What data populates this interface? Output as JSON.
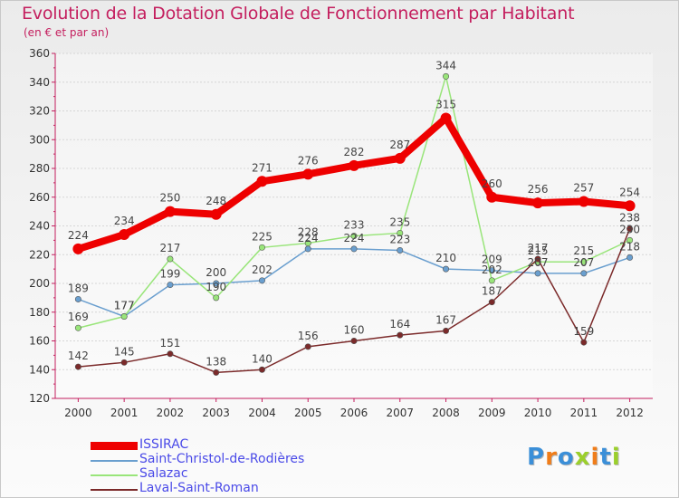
{
  "chart_data": {
    "type": "line",
    "title": "Evolution de la Dotation Globale de Fonctionnement par Habitant",
    "subtitle": "(en € et par an)",
    "xlabel": "",
    "ylabel": "",
    "ylim": [
      120,
      360
    ],
    "yticks": [
      120,
      140,
      160,
      180,
      200,
      220,
      240,
      260,
      280,
      300,
      320,
      340,
      360
    ],
    "grid": "horizontal",
    "categories": [
      "2000",
      "2001",
      "2002",
      "2003",
      "2004",
      "2005",
      "2006",
      "2007",
      "2008",
      "2009",
      "2010",
      "2011",
      "2012"
    ],
    "series": [
      {
        "name": "ISSIRAC",
        "color": "#ee0000",
        "values": [
          224,
          234,
          250,
          248,
          271,
          276,
          282,
          287,
          315,
          260,
          256,
          257,
          254
        ]
      },
      {
        "name": "Saint-Christol-de-Rodières",
        "color": "#6a9fcf",
        "values": [
          189,
          177,
          199,
          200,
          202,
          224,
          224,
          223,
          210,
          209,
          207,
          207,
          218
        ]
      },
      {
        "name": "Salazac",
        "color": "#99e57a",
        "values": [
          169,
          177,
          217,
          190,
          225,
          228,
          233,
          235,
          344,
          202,
          215,
          215,
          230
        ]
      },
      {
        "name": "Laval-Saint-Roman",
        "color": "#7b2a2a",
        "values": [
          142,
          145,
          151,
          138,
          140,
          156,
          160,
          164,
          167,
          187,
          217,
          159,
          238
        ]
      }
    ]
  },
  "legend_position": "bottom-left",
  "logo": {
    "letters": [
      "P",
      "r",
      "o",
      "x",
      "i",
      "t",
      "i"
    ],
    "colors": [
      "#3b8fd8",
      "#f07d1a",
      "#3b8fd8",
      "#9bcf2c",
      "#f07d1a",
      "#3b8fd8",
      "#9bcf2c"
    ]
  }
}
